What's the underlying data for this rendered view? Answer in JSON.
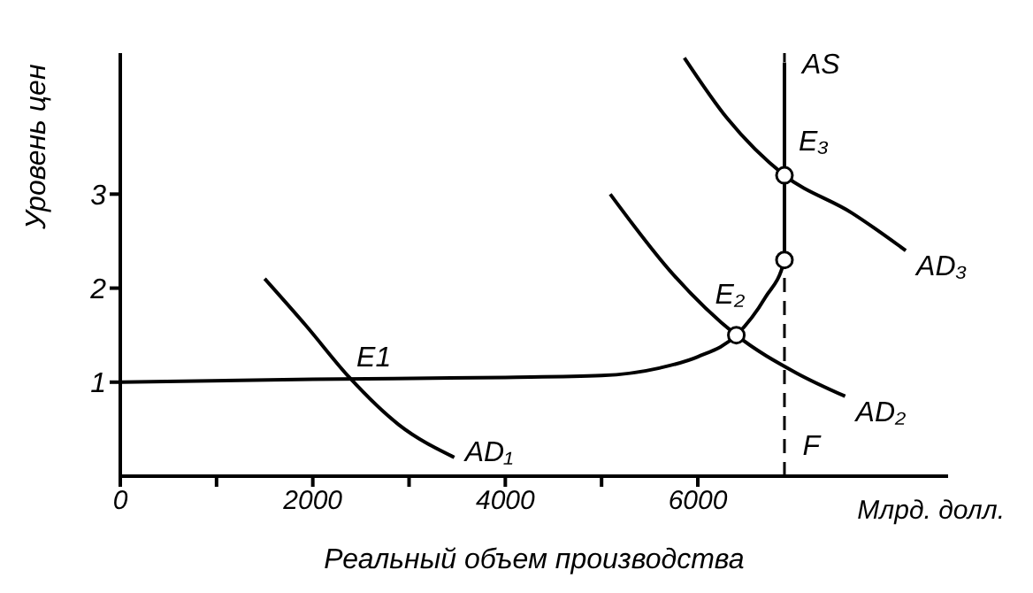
{
  "chart_data": {
    "type": "line",
    "xlabel": "Реальный объем производства",
    "ylabel": "Уровень цен",
    "xlim": [
      0,
      8600
    ],
    "ylim": [
      0,
      4.5
    ],
    "xticks": [
      0,
      {
        "value": 1000,
        "label": null
      },
      2000,
      {
        "value": 3000,
        "label": null
      },
      4000,
      {
        "value": 5000,
        "label": null
      },
      6000
    ],
    "yticks": [
      1,
      2,
      3
    ],
    "grid": false,
    "legend": false,
    "marker": "none",
    "line_style": "solid",
    "series": [
      {
        "name": "AS",
        "color": "#000000",
        "x": [
          0,
          2000,
          4000,
          5000,
          5600,
          6000,
          6400,
          6700,
          6900,
          6900,
          6900
        ],
        "values": [
          1,
          1.03,
          1.05,
          1.07,
          1.15,
          1.27,
          1.5,
          1.9,
          2.3,
          3.2,
          4.4
        ]
      },
      {
        "name": "AD₁",
        "color": "#000000",
        "x": [
          1500,
          1930,
          2380,
          2890,
          3470
        ],
        "values": [
          2.1,
          1.6,
          1.05,
          0.55,
          0.2
        ]
      },
      {
        "name": "AD₂",
        "color": "#000000",
        "x": [
          5090,
          5740,
          6400,
          7020,
          7530
        ],
        "values": [
          3,
          2.15,
          1.5,
          1.1,
          0.85
        ]
      },
      {
        "name": "AD₃",
        "color": "#000000",
        "x": [
          5860,
          6310,
          6900,
          7600,
          8160
        ],
        "values": [
          4.45,
          3.8,
          3.2,
          2.8,
          2.4
        ]
      },
      {
        "type": "scatter",
        "marker": "circle",
        "color": "#000000",
        "x": [
          6400,
          6900,
          6900
        ],
        "values": [
          1.5,
          2.3,
          3.2
        ]
      }
    ],
    "ref_lines": [
      {
        "axis": "x",
        "value": 6900,
        "label": "F",
        "line_style": "dashed",
        "color": "#000000"
      }
    ],
    "annotations": [
      {
        "text": "E1",
        "x": 2380,
        "y": 1.05
      },
      {
        "text": "E₂",
        "x": 6400,
        "y": 1.5
      },
      {
        "text": "E₃",
        "x": 6900,
        "y": 3.2
      },
      "Млрд. долл."
    ]
  }
}
